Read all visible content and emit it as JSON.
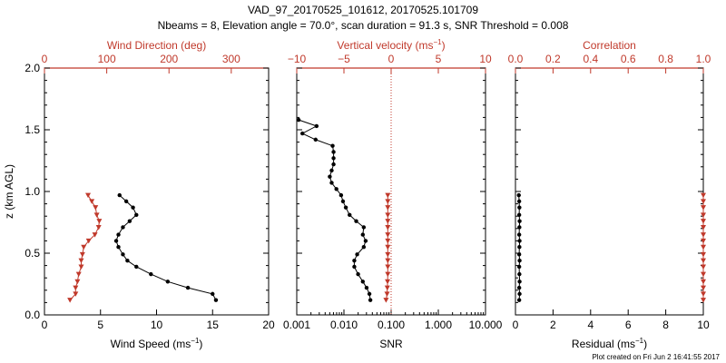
{
  "title_line1": "VAD_97_20170525_101612, 20170525.101709",
  "title_line2": "Nbeams = 8, Elevation angle = 70.0°, scan duration = 91.3 s, SNR Threshold = 0.008",
  "footer": "Plot created on Fri Jun  2 16:41:55 2017",
  "colors": {
    "black": "#000000",
    "red": "#c0392b"
  },
  "chart_data": [
    {
      "type": "line",
      "panel": "left",
      "ylabel": "z (km AGL)",
      "ylim": [
        0,
        2.0
      ],
      "yticks": [
        "0.0",
        "0.5",
        "1.0",
        "1.5",
        "2.0"
      ],
      "bottom_axis": {
        "label": "Wind Speed (ms⁻¹)",
        "range": [
          0,
          20
        ],
        "ticks": [
          "0",
          "5",
          "10",
          "15",
          "20"
        ]
      },
      "top_axis": {
        "label": "Wind Direction (deg)",
        "range": [
          0,
          360
        ],
        "ticks": [
          "0",
          "100",
          "200",
          "300"
        ]
      },
      "series": [
        {
          "name": "Wind Speed",
          "axis": "bottom",
          "color": "#000000",
          "marker": "circle",
          "points": [
            [
              15.3,
              0.12
            ],
            [
              15.0,
              0.17
            ],
            [
              12.8,
              0.22
            ],
            [
              11.0,
              0.27
            ],
            [
              9.5,
              0.33
            ],
            [
              8.2,
              0.39
            ],
            [
              7.4,
              0.44
            ],
            [
              7.0,
              0.49
            ],
            [
              6.6,
              0.55
            ],
            [
              6.4,
              0.6
            ],
            [
              6.6,
              0.65
            ],
            [
              7.0,
              0.71
            ],
            [
              7.6,
              0.76
            ],
            [
              8.2,
              0.81
            ],
            [
              7.9,
              0.87
            ],
            [
              7.3,
              0.92
            ],
            [
              6.7,
              0.97
            ]
          ]
        },
        {
          "name": "Wind Direction",
          "axis": "top",
          "color": "#c0392b",
          "marker": "triangle",
          "points": [
            [
              41,
              0.12
            ],
            [
              50,
              0.17
            ],
            [
              50,
              0.22
            ],
            [
              53,
              0.27
            ],
            [
              55,
              0.33
            ],
            [
              59,
              0.39
            ],
            [
              59,
              0.44
            ],
            [
              61,
              0.49
            ],
            [
              63,
              0.55
            ],
            [
              71,
              0.6
            ],
            [
              81,
              0.65
            ],
            [
              87,
              0.71
            ],
            [
              88,
              0.76
            ],
            [
              84,
              0.81
            ],
            [
              82,
              0.87
            ],
            [
              76,
              0.92
            ],
            [
              70,
              0.97
            ]
          ]
        }
      ]
    },
    {
      "type": "line",
      "panel": "middle",
      "ylim": [
        0,
        2.0
      ],
      "bottom_axis": {
        "label": "SNR",
        "scale": "log",
        "range": [
          0.001,
          10
        ],
        "ticks": [
          "0.001",
          "0.010",
          "0.100",
          "1.000",
          "10.000"
        ]
      },
      "top_axis": {
        "label": "Vertical velocity (ms⁻¹)",
        "range": [
          -10,
          10
        ],
        "ticks": [
          "−10",
          "−5",
          "0",
          "5",
          "10"
        ],
        "zero_line": true
      },
      "series": [
        {
          "name": "Vertical velocity",
          "axis": "top",
          "color": "#000000",
          "marker": "circle",
          "points": [
            [
              -2.2,
              0.12
            ],
            [
              -2.3,
              0.17
            ],
            [
              -2.6,
              0.22
            ],
            [
              -3.0,
              0.27
            ],
            [
              -3.5,
              0.33
            ],
            [
              -3.9,
              0.39
            ],
            [
              -3.9,
              0.44
            ],
            [
              -3.6,
              0.49
            ],
            [
              -2.9,
              0.55
            ],
            [
              -2.7,
              0.6
            ],
            [
              -3.0,
              0.65
            ],
            [
              -2.9,
              0.71
            ],
            [
              -3.7,
              0.76
            ],
            [
              -4.4,
              0.81
            ],
            [
              -4.8,
              0.87
            ],
            [
              -5.1,
              0.92
            ],
            [
              -5.3,
              0.97
            ],
            [
              -5.8,
              1.02
            ],
            [
              -6.3,
              1.07
            ],
            [
              -6.5,
              1.12
            ],
            [
              -6.3,
              1.17
            ],
            [
              -6.1,
              1.22
            ],
            [
              -6.1,
              1.27
            ],
            [
              -6.1,
              1.32
            ],
            [
              -6.2,
              1.37
            ],
            [
              -8.0,
              1.42
            ],
            [
              -9.4,
              1.47
            ],
            [
              -7.9,
              1.53
            ],
            [
              -9.8,
              1.58
            ]
          ]
        },
        {
          "name": "SNR",
          "axis": "bottom",
          "color": "#c0392b",
          "marker": "triangle",
          "points": [
            [
              0.078,
              0.12
            ],
            [
              0.082,
              0.17
            ],
            [
              0.083,
              0.22
            ],
            [
              0.084,
              0.27
            ],
            [
              0.085,
              0.33
            ],
            [
              0.085,
              0.39
            ],
            [
              0.085,
              0.44
            ],
            [
              0.085,
              0.49
            ],
            [
              0.085,
              0.55
            ],
            [
              0.085,
              0.6
            ],
            [
              0.085,
              0.65
            ],
            [
              0.085,
              0.71
            ],
            [
              0.085,
              0.76
            ],
            [
              0.085,
              0.81
            ],
            [
              0.085,
              0.87
            ],
            [
              0.085,
              0.92
            ],
            [
              0.085,
              0.97
            ]
          ]
        }
      ]
    },
    {
      "type": "line",
      "panel": "right",
      "ylim": [
        0,
        2.0
      ],
      "bottom_axis": {
        "label": "Residual (ms⁻¹)",
        "range": [
          0,
          10
        ],
        "ticks": [
          "0",
          "2",
          "4",
          "6",
          "8",
          "10"
        ]
      },
      "top_axis": {
        "label": "Correlation",
        "range": [
          0,
          1
        ],
        "ticks": [
          "0.0",
          "0.2",
          "0.4",
          "0.6",
          "0.8",
          "1.0"
        ]
      },
      "series": [
        {
          "name": "Residual",
          "axis": "bottom",
          "color": "#000000",
          "marker": "circle",
          "points": [
            [
              0.2,
              0.12
            ],
            [
              0.22,
              0.17
            ],
            [
              0.2,
              0.22
            ],
            [
              0.22,
              0.27
            ],
            [
              0.21,
              0.33
            ],
            [
              0.2,
              0.39
            ],
            [
              0.22,
              0.44
            ],
            [
              0.2,
              0.49
            ],
            [
              0.21,
              0.55
            ],
            [
              0.22,
              0.6
            ],
            [
              0.2,
              0.65
            ],
            [
              0.21,
              0.71
            ],
            [
              0.22,
              0.76
            ],
            [
              0.2,
              0.81
            ],
            [
              0.21,
              0.87
            ],
            [
              0.2,
              0.92
            ],
            [
              0.18,
              0.97
            ]
          ]
        },
        {
          "name": "Correlation",
          "axis": "top",
          "color": "#c0392b",
          "marker": "triangle",
          "points": [
            [
              1.0,
              0.12
            ],
            [
              1.0,
              0.17
            ],
            [
              1.0,
              0.22
            ],
            [
              1.0,
              0.27
            ],
            [
              1.0,
              0.33
            ],
            [
              1.0,
              0.39
            ],
            [
              1.0,
              0.44
            ],
            [
              1.0,
              0.49
            ],
            [
              1.0,
              0.55
            ],
            [
              1.0,
              0.6
            ],
            [
              1.0,
              0.65
            ],
            [
              1.0,
              0.71
            ],
            [
              1.0,
              0.76
            ],
            [
              1.0,
              0.81
            ],
            [
              1.0,
              0.87
            ],
            [
              1.0,
              0.92
            ],
            [
              1.0,
              0.97
            ]
          ]
        }
      ]
    }
  ]
}
